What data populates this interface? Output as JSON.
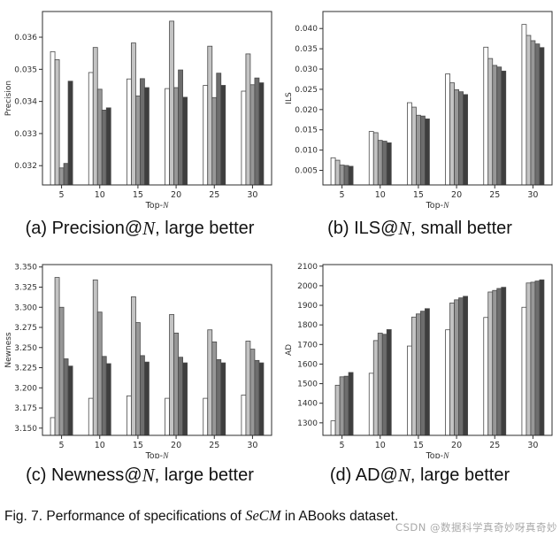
{
  "figure_caption": {
    "prefix": "Fig. 7. Performance of specifications of ",
    "math": "SeCM",
    "suffix": " in ABooks dataset."
  },
  "watermark": "CSDN @数据科学真奇妙呀真奇妙",
  "colors": {
    "bar_fills": [
      "#ffffff",
      "#c3c3c3",
      "#979797",
      "#6d6d6d",
      "#3e3e3e"
    ],
    "bar_edge": "#4a4a4a",
    "axis": "#2e2e2e",
    "caption_text": "#111111",
    "watermark": "#a9a9a9"
  },
  "chart_data": [
    {
      "type": "bar",
      "panel": "a",
      "caption": {
        "prefix": "(a) Precision@",
        "math": "N",
        "suffix": ", large better"
      },
      "ylabel": "Precision",
      "xlabel": {
        "prefix": "Top-",
        "math": "N"
      },
      "categories": [
        "5",
        "10",
        "15",
        "20",
        "25",
        "30"
      ],
      "yticks": [
        "0.032",
        "0.033",
        "0.034",
        "0.035",
        "0.036"
      ],
      "ytick_values": [
        0.032,
        0.033,
        0.034,
        0.035,
        0.036
      ],
      "ylim": [
        0.0314,
        0.0368
      ],
      "grid": false,
      "legend": "none",
      "series": [
        {
          "name": "white",
          "values": [
            0.03555,
            0.0349,
            0.0347,
            0.0344,
            0.0345,
            0.03432
          ]
        },
        {
          "name": "light-gray",
          "values": [
            0.0353,
            0.03568,
            0.03582,
            0.0365,
            0.03572,
            0.03548
          ]
        },
        {
          "name": "mid-gray",
          "values": [
            0.03193,
            0.03438,
            0.03417,
            0.03443,
            0.03412,
            0.03452
          ]
        },
        {
          "name": "dark-gray",
          "values": [
            0.03207,
            0.03373,
            0.03471,
            0.03498,
            0.03488,
            0.03473
          ]
        },
        {
          "name": "near-black",
          "values": [
            0.03463,
            0.0338,
            0.03443,
            0.03413,
            0.0345,
            0.03458
          ]
        }
      ]
    },
    {
      "type": "bar",
      "panel": "b",
      "caption": {
        "prefix": "(b) ILS@",
        "math": "N",
        "suffix": ", small better"
      },
      "ylabel": "ILS",
      "xlabel": {
        "prefix": "Top-",
        "math": "N"
      },
      "categories": [
        "5",
        "10",
        "15",
        "20",
        "25",
        "30"
      ],
      "yticks": [
        "0.005",
        "0.010",
        "0.015",
        "0.020",
        "0.025",
        "0.030",
        "0.035",
        "0.040"
      ],
      "ytick_values": [
        0.005,
        0.01,
        0.015,
        0.02,
        0.025,
        0.03,
        0.035,
        0.04
      ],
      "ylim": [
        0.0014,
        0.0442
      ],
      "grid": false,
      "legend": "none",
      "series": [
        {
          "name": "white",
          "values": [
            0.0081,
            0.0146,
            0.0217,
            0.0288,
            0.0354,
            0.041
          ]
        },
        {
          "name": "light-gray",
          "values": [
            0.0075,
            0.0143,
            0.0206,
            0.0266,
            0.0326,
            0.0383
          ]
        },
        {
          "name": "mid-gray",
          "values": [
            0.0063,
            0.0124,
            0.0186,
            0.0249,
            0.0309,
            0.037
          ]
        },
        {
          "name": "dark-gray",
          "values": [
            0.0062,
            0.0122,
            0.0184,
            0.0244,
            0.0305,
            0.0362
          ]
        },
        {
          "name": "near-black",
          "values": [
            0.006,
            0.0118,
            0.0177,
            0.0237,
            0.0295,
            0.0353
          ]
        }
      ]
    },
    {
      "type": "bar",
      "panel": "c",
      "caption": {
        "prefix": "(c) Newness@",
        "math": "N",
        "suffix": ", large better"
      },
      "ylabel": "Newness",
      "xlabel": {
        "prefix": "Top-",
        "math": "N"
      },
      "categories": [
        "5",
        "10",
        "15",
        "20",
        "25",
        "30"
      ],
      "yticks": [
        "3.150",
        "3.175",
        "3.200",
        "3.225",
        "3.250",
        "3.275",
        "3.300",
        "3.325",
        "3.350"
      ],
      "ytick_values": [
        3.15,
        3.175,
        3.2,
        3.225,
        3.25,
        3.275,
        3.3,
        3.325,
        3.35
      ],
      "ylim": [
        3.141,
        3.353
      ],
      "grid": false,
      "legend": "none",
      "series": [
        {
          "name": "white",
          "values": [
            3.163,
            3.187,
            3.19,
            3.187,
            3.187,
            3.191
          ]
        },
        {
          "name": "light-gray",
          "values": [
            3.337,
            3.334,
            3.313,
            3.291,
            3.272,
            3.258
          ]
        },
        {
          "name": "mid-gray",
          "values": [
            3.3,
            3.294,
            3.281,
            3.268,
            3.257,
            3.248
          ]
        },
        {
          "name": "dark-gray",
          "values": [
            3.236,
            3.239,
            3.24,
            3.238,
            3.235,
            3.234
          ]
        },
        {
          "name": "near-black",
          "values": [
            3.227,
            3.23,
            3.232,
            3.231,
            3.231,
            3.231
          ]
        }
      ]
    },
    {
      "type": "bar",
      "panel": "d",
      "caption": {
        "prefix": "(d) AD@",
        "math": "N",
        "suffix": ", large better"
      },
      "ylabel": "AD",
      "xlabel": {
        "prefix": "Top-",
        "math": "N"
      },
      "categories": [
        "5",
        "10",
        "15",
        "20",
        "25",
        "30"
      ],
      "yticks": [
        "1300",
        "1400",
        "1500",
        "1600",
        "1700",
        "1800",
        "1900",
        "2000",
        "2100"
      ],
      "ytick_values": [
        1300,
        1400,
        1500,
        1600,
        1700,
        1800,
        1900,
        2000,
        2100
      ],
      "ylim": [
        1236,
        2108
      ],
      "grid": false,
      "legend": "none",
      "series": [
        {
          "name": "white",
          "values": [
            1310,
            1553,
            1692,
            1775,
            1838,
            1890
          ]
        },
        {
          "name": "light-gray",
          "values": [
            1492,
            1720,
            1840,
            1912,
            1968,
            2014
          ]
        },
        {
          "name": "mid-gray",
          "values": [
            1535,
            1758,
            1856,
            1928,
            1976,
            2018
          ]
        },
        {
          "name": "dark-gray",
          "values": [
            1538,
            1752,
            1870,
            1938,
            1986,
            2024
          ]
        },
        {
          "name": "near-black",
          "values": [
            1557,
            1776,
            1883,
            1946,
            1992,
            2030
          ]
        }
      ]
    }
  ]
}
